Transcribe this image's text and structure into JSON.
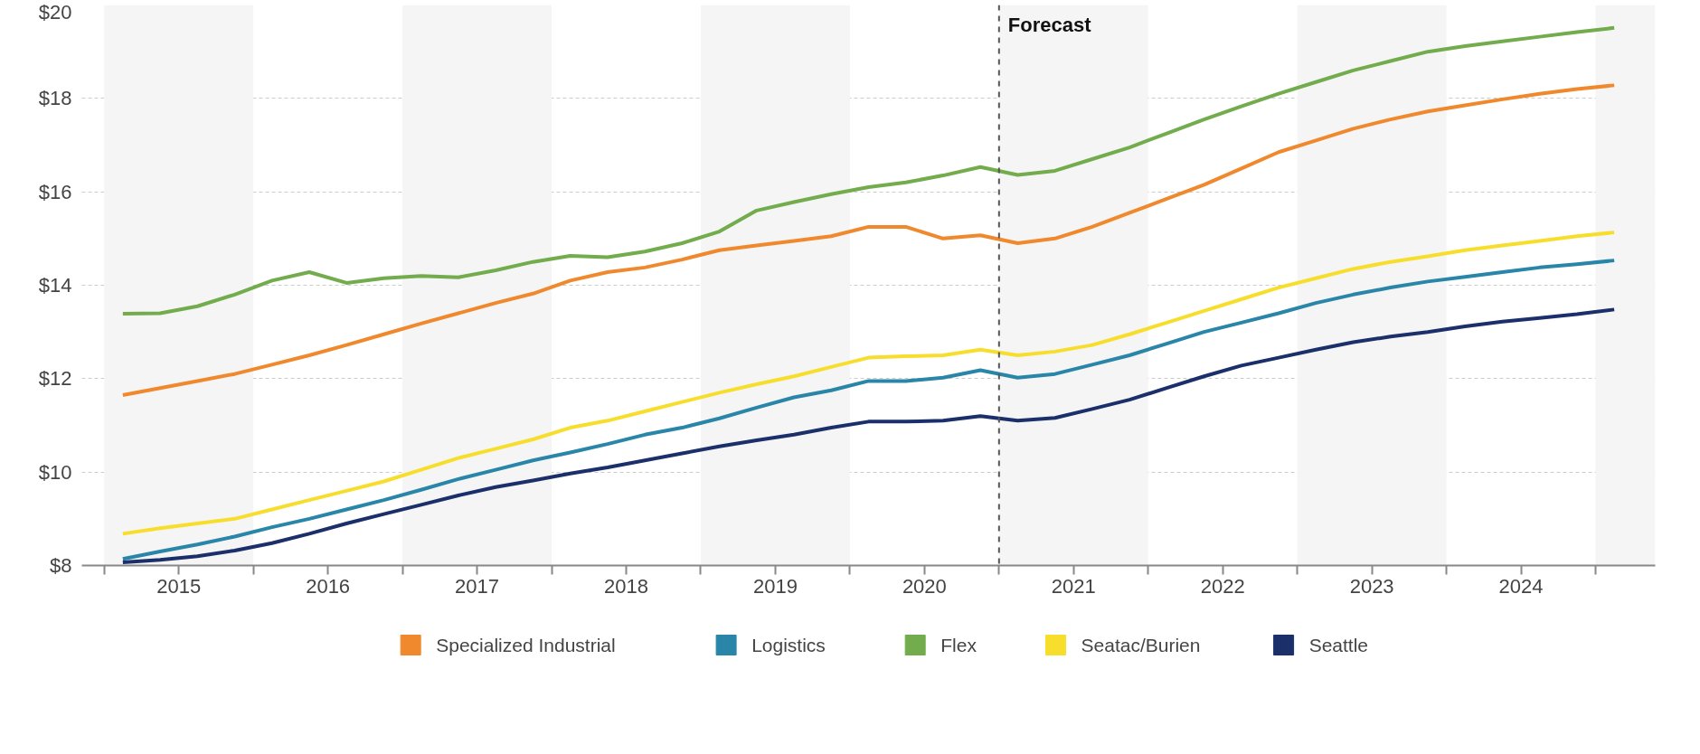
{
  "chart_data": {
    "type": "line",
    "x": [
      2015.125,
      2015.375,
      2015.625,
      2015.875,
      2016.125,
      2016.375,
      2016.625,
      2016.875,
      2017.125,
      2017.375,
      2017.625,
      2017.875,
      2018.125,
      2018.375,
      2018.625,
      2018.875,
      2019.125,
      2019.375,
      2019.625,
      2019.875,
      2020.125,
      2020.375,
      2020.625,
      2020.875,
      2021.125,
      2021.375,
      2021.625,
      2021.875,
      2022.125,
      2022.375,
      2022.625,
      2022.875,
      2023.125,
      2023.375,
      2023.625,
      2023.875,
      2024.125,
      2024.375,
      2024.625,
      2024.875,
      2025.125
    ],
    "series": [
      {
        "name": "Specialized Industrial",
        "color": "#f0892e",
        "values": [
          11.65,
          11.8,
          11.95,
          12.1,
          12.3,
          12.5,
          12.72,
          12.95,
          13.18,
          13.4,
          13.62,
          13.82,
          14.1,
          14.28,
          14.38,
          14.55,
          14.75,
          14.85,
          14.95,
          15.05,
          15.25,
          15.25,
          15.0,
          15.07,
          14.9,
          15.0,
          15.25,
          15.55,
          15.85,
          16.15,
          16.5,
          16.85,
          17.1,
          17.35,
          17.55,
          17.72,
          17.85,
          17.98,
          18.1,
          18.2,
          18.28
        ]
      },
      {
        "name": "Logistics",
        "color": "#2a86a8",
        "values": [
          8.14,
          8.3,
          8.45,
          8.62,
          8.82,
          9.0,
          9.2,
          9.4,
          9.62,
          9.85,
          10.05,
          10.25,
          10.42,
          10.6,
          10.8,
          10.95,
          11.15,
          11.38,
          11.6,
          11.75,
          11.95,
          11.95,
          12.02,
          12.18,
          12.02,
          12.1,
          12.3,
          12.5,
          12.75,
          13.0,
          13.2,
          13.4,
          13.62,
          13.8,
          13.95,
          14.08,
          14.18,
          14.28,
          14.38,
          14.45,
          14.53
        ]
      },
      {
        "name": "Flex",
        "color": "#72ac4d",
        "values": [
          13.39,
          13.4,
          13.55,
          13.8,
          14.1,
          14.28,
          14.05,
          14.15,
          14.2,
          14.17,
          14.32,
          14.5,
          14.63,
          14.6,
          14.72,
          14.9,
          15.15,
          15.6,
          15.78,
          15.95,
          16.1,
          16.2,
          16.35,
          16.53,
          16.36,
          16.45,
          16.7,
          16.95,
          17.25,
          17.55,
          17.83,
          18.1,
          18.35,
          18.6,
          18.8,
          19.0,
          19.12,
          19.22,
          19.32,
          19.42,
          19.51
        ]
      },
      {
        "name": "Seatac/Burien",
        "color": "#f8de2c",
        "values": [
          8.68,
          8.8,
          8.9,
          9.0,
          9.2,
          9.4,
          9.6,
          9.8,
          10.05,
          10.3,
          10.5,
          10.7,
          10.95,
          11.1,
          11.3,
          11.5,
          11.7,
          11.88,
          12.05,
          12.25,
          12.45,
          12.48,
          12.5,
          12.62,
          12.5,
          12.58,
          12.72,
          12.95,
          13.2,
          13.45,
          13.7,
          13.95,
          14.15,
          14.35,
          14.5,
          14.62,
          14.75,
          14.85,
          14.95,
          15.05,
          15.13
        ]
      },
      {
        "name": "Seattle",
        "color": "#1b2f6b",
        "values": [
          8.07,
          8.12,
          8.2,
          8.32,
          8.48,
          8.68,
          8.9,
          9.1,
          9.3,
          9.5,
          9.68,
          9.82,
          9.97,
          10.1,
          10.25,
          10.4,
          10.55,
          10.68,
          10.8,
          10.95,
          11.08,
          11.08,
          11.1,
          11.2,
          11.1,
          11.16,
          11.35,
          11.55,
          11.8,
          12.05,
          12.28,
          12.45,
          12.62,
          12.78,
          12.9,
          13.0,
          13.12,
          13.22,
          13.3,
          13.38,
          13.48
        ]
      }
    ],
    "xlim": [
      2014.85,
      2025.4
    ],
    "xticks": [
      {
        "value": 2015,
        "label": null
      },
      {
        "value": 2016,
        "label": null
      },
      {
        "value": 2017,
        "label": null
      },
      {
        "value": 2018,
        "label": null
      },
      {
        "value": 2019,
        "label": null
      },
      {
        "value": 2020,
        "label": null
      },
      {
        "value": 2021,
        "label": null
      },
      {
        "value": 2022,
        "label": null
      },
      {
        "value": 2023,
        "label": null
      },
      {
        "value": 2024,
        "label": null
      },
      {
        "value": 2025,
        "label": null
      },
      {
        "value": 2015.5,
        "label": "2015"
      },
      {
        "value": 2016.5,
        "label": "2016"
      },
      {
        "value": 2017.5,
        "label": "2017"
      },
      {
        "value": 2018.5,
        "label": "2018"
      },
      {
        "value": 2019.5,
        "label": "2019"
      },
      {
        "value": 2020.5,
        "label": "2020"
      },
      {
        "value": 2021.5,
        "label": "2021"
      },
      {
        "value": 2022.5,
        "label": "2022"
      },
      {
        "value": 2023.5,
        "label": "2023"
      },
      {
        "value": 2024.5,
        "label": "2024"
      }
    ],
    "ylim": [
      8,
      20
    ],
    "yticks": [
      {
        "value": 8,
        "label": "$8"
      },
      {
        "value": 10,
        "label": "$10"
      },
      {
        "value": 12,
        "label": "$12"
      },
      {
        "value": 14,
        "label": "$14"
      },
      {
        "value": 16,
        "label": "$16"
      },
      {
        "value": 18,
        "label": "$18"
      },
      {
        "value": 20,
        "label": "$20"
      }
    ],
    "ref_lines": [
      {
        "axis": "x",
        "value": 2021,
        "label": "Forecast",
        "color": "#555555",
        "line_style": "dashed"
      }
    ],
    "bands": [
      {
        "axis": "x",
        "from": 2015,
        "to": 2016,
        "color": "#f5f5f5"
      },
      {
        "axis": "x",
        "from": 2017,
        "to": 2018,
        "color": "#f5f5f5"
      },
      {
        "axis": "x",
        "from": 2019,
        "to": 2020,
        "color": "#f5f5f5"
      },
      {
        "axis": "x",
        "from": 2021,
        "to": 2022,
        "color": "#f5f5f5"
      },
      {
        "axis": "x",
        "from": 2023,
        "to": 2024,
        "color": "#f5f5f5"
      },
      {
        "axis": "x",
        "from": 2025,
        "to": 2025.4,
        "color": "#f5f5f5"
      }
    ],
    "grid": "y",
    "legend": "bottom",
    "marker": "none",
    "line_style": "solid"
  }
}
